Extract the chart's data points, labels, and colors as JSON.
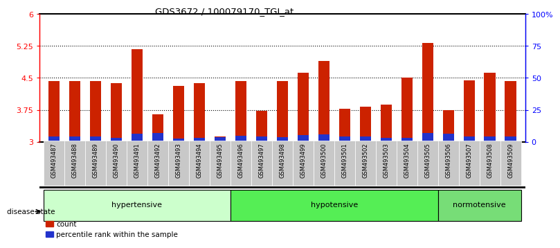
{
  "title": "GDS3672 / 100079170_TGI_at",
  "samples": [
    "GSM493487",
    "GSM493488",
    "GSM493489",
    "GSM493490",
    "GSM493491",
    "GSM493492",
    "GSM493493",
    "GSM493494",
    "GSM493495",
    "GSM493496",
    "GSM493497",
    "GSM493498",
    "GSM493499",
    "GSM493500",
    "GSM493501",
    "GSM493502",
    "GSM493503",
    "GSM493504",
    "GSM493505",
    "GSM493506",
    "GSM493507",
    "GSM493508",
    "GSM493509"
  ],
  "count_values": [
    4.42,
    4.42,
    4.42,
    4.38,
    5.17,
    3.65,
    4.32,
    4.38,
    3.12,
    4.42,
    3.73,
    4.42,
    4.62,
    4.9,
    3.78,
    3.82,
    3.88,
    4.5,
    5.32,
    3.75,
    4.45,
    4.62,
    4.42
  ],
  "percentile_values": [
    0.12,
    0.13,
    0.13,
    0.09,
    0.18,
    0.2,
    0.08,
    0.09,
    0.1,
    0.14,
    0.12,
    0.1,
    0.15,
    0.17,
    0.13,
    0.12,
    0.09,
    0.09,
    0.2,
    0.19,
    0.13,
    0.13,
    0.13
  ],
  "groups": [
    {
      "label": "hypertensive",
      "start": 0,
      "end": 8,
      "color": "#ccffcc"
    },
    {
      "label": "hypotensive",
      "start": 9,
      "end": 18,
      "color": "#55ee55"
    },
    {
      "label": "normotensive",
      "start": 19,
      "end": 22,
      "color": "#77dd77"
    }
  ],
  "bar_color": "#cc2200",
  "percentile_color": "#2233cc",
  "ylim_left": [
    3.0,
    6.0
  ],
  "ylim_right": [
    0,
    100
  ],
  "yticks_left": [
    3.0,
    3.75,
    4.5,
    5.25,
    6.0
  ],
  "yticks_right": [
    0,
    25,
    50,
    75,
    100
  ],
  "yticklabels_right": [
    "0",
    "25",
    "50",
    "75",
    "100%"
  ],
  "grid_values": [
    3.75,
    4.5,
    5.25
  ],
  "bar_width": 0.55,
  "baseline": 3.0,
  "bg_color": "#ffffff",
  "tick_label_bg": "#c8c8c8"
}
